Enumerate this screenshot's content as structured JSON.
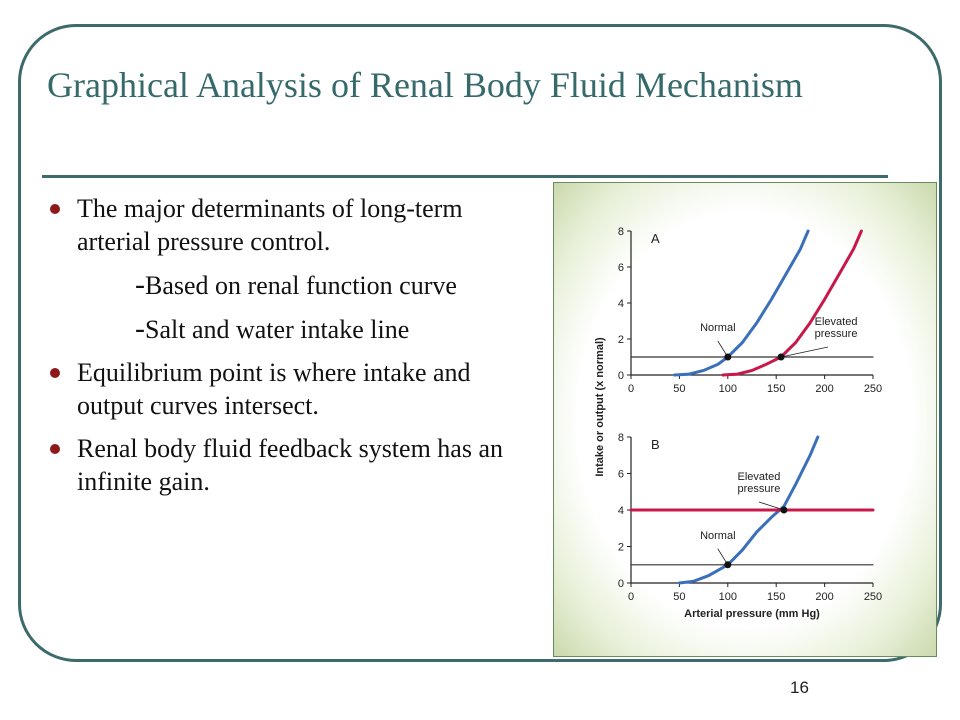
{
  "slide": {
    "title": "Graphical Analysis of Renal Body Fluid Mechanism",
    "page_number": "16",
    "bullets": [
      {
        "text": "The major determinants of long-term arterial pressure control.",
        "subs": [
          "Based on renal function curve",
          "Salt and water intake line"
        ]
      },
      {
        "text": "Equilibrium point is where intake and output curves intersect.",
        "subs": []
      },
      {
        "text": "Renal body fluid feedback system has an infinite gain.",
        "subs": []
      }
    ],
    "colors": {
      "title": "#35696a",
      "frame": "#3d6a6b",
      "bullet": "#8c1a1a"
    }
  },
  "chart_data": [
    {
      "type": "line",
      "panel_label": "A",
      "xlabel": "Arterial pressure (mm Hg)",
      "ylabel": "Intake or output (x normal)",
      "xlim": [
        0,
        250
      ],
      "ylim": [
        0,
        8
      ],
      "x_ticks": [
        0,
        50,
        100,
        150,
        200,
        250
      ],
      "y_ticks": [
        0,
        2,
        4,
        6,
        8
      ],
      "series": [
        {
          "name": "",
          "color": "#3a6fba",
          "points": [
            [
              45,
              0
            ],
            [
              60,
              0.05
            ],
            [
              75,
              0.25
            ],
            [
              90,
              0.6
            ],
            [
              100,
              1
            ],
            [
              115,
              1.8
            ],
            [
              130,
              2.9
            ],
            [
              145,
              4.2
            ],
            [
              160,
              5.6
            ],
            [
              175,
              7
            ],
            [
              183,
              8
            ]
          ]
        },
        {
          "name": "",
          "color": "#c8184a",
          "points": [
            [
              95,
              0
            ],
            [
              110,
              0.05
            ],
            [
              125,
              0.25
            ],
            [
              140,
              0.6
            ],
            [
              155,
              1
            ],
            [
              170,
              1.8
            ],
            [
              185,
              2.9
            ],
            [
              200,
              4.2
            ],
            [
              215,
              5.6
            ],
            [
              230,
              7
            ],
            [
              238,
              8
            ]
          ]
        },
        {
          "name": "",
          "color": "#333333",
          "points": [
            [
              0,
              1
            ],
            [
              250,
              1
            ]
          ]
        }
      ],
      "equilibrium_points": [
        {
          "label": "Normal",
          "x": 100,
          "y": 1
        },
        {
          "label": "Elevated pressure",
          "x": 155,
          "y": 1
        }
      ]
    },
    {
      "type": "line",
      "panel_label": "B",
      "xlabel": "Arterial pressure (mm Hg)",
      "ylabel": "Intake or output (x normal)",
      "xlim": [
        0,
        250
      ],
      "ylim": [
        0,
        8
      ],
      "x_ticks": [
        0,
        50,
        100,
        150,
        200,
        250
      ],
      "y_ticks": [
        0,
        2,
        4,
        6,
        8
      ],
      "series": [
        {
          "name": "",
          "color": "#3a6fba",
          "points": [
            [
              50,
              0
            ],
            [
              65,
              0.1
            ],
            [
              80,
              0.4
            ],
            [
              100,
              1
            ],
            [
              115,
              1.8
            ],
            [
              130,
              2.8
            ],
            [
              145,
              3.6
            ],
            [
              158,
              4.2
            ],
            [
              170,
              5.4
            ],
            [
              185,
              7
            ],
            [
              193,
              8
            ]
          ]
        },
        {
          "name": "",
          "color": "#c8184a",
          "points": [
            [
              0,
              4
            ],
            [
              250,
              4
            ]
          ]
        },
        {
          "name": "",
          "color": "#333333",
          "points": [
            [
              0,
              1
            ],
            [
              250,
              1
            ]
          ]
        }
      ],
      "equilibrium_points": [
        {
          "label": "Normal",
          "x": 100,
          "y": 1
        },
        {
          "label": "Elevated pressure",
          "x": 158,
          "y": 4
        }
      ]
    }
  ]
}
